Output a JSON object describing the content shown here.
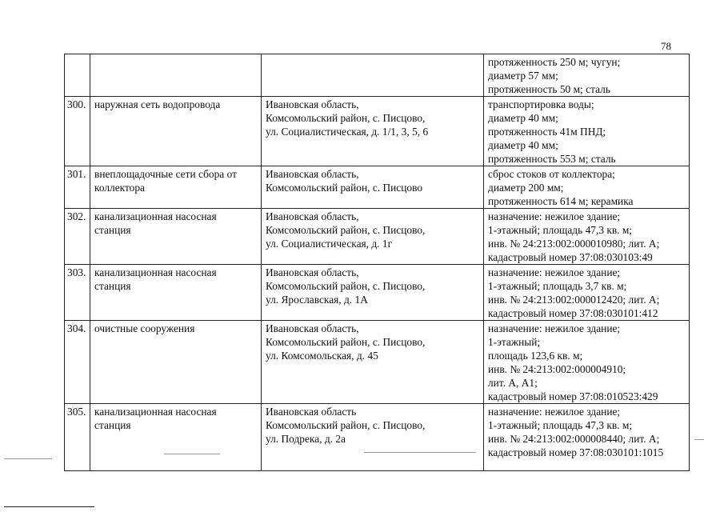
{
  "page_number": "78",
  "rows": [
    {
      "num": "",
      "name": [],
      "address": [],
      "details": [
        "протяженность 250 м; чугун;",
        "диаметр 57 мм;",
        "протяженность 50 м; сталь"
      ]
    },
    {
      "num": "300.",
      "name": [
        "наружная сеть водопровода"
      ],
      "address": [
        "Ивановская область,",
        "Комсомольский район, с. Писцово,",
        "ул. Социалистическая, д. 1/1, 3, 5, 6"
      ],
      "details": [
        "транспортировка воды;",
        "диаметр 40 мм;",
        "протяженность  41м ПНД;",
        "диаметр 40 мм;",
        "протяженность 553 м; сталь"
      ]
    },
    {
      "num": "301.",
      "name": [
        "внеплощадочные сети сбора от",
        "коллектора"
      ],
      "address": [
        "Ивановская область,",
        "Комсомольский район, с. Писцово"
      ],
      "details": [
        "сброс стоков от коллектора;",
        "диаметр 200 мм;",
        "протяженность 614 м; керамика"
      ]
    },
    {
      "num": "302.",
      "name": [
        "канализационная насосная",
        "станция"
      ],
      "address": [
        "Ивановская область,",
        "Комсомольский район, с. Писцово,",
        "ул. Социалистическая, д. 1г"
      ],
      "details": [
        "назначение: нежилое здание;",
        "1-этажный; площадь 47,3 кв. м;",
        "инв. № 24:213:002:000010980; лит. А;",
        "кадастровый номер 37:08:030103:49"
      ]
    },
    {
      "num": "303.",
      "name": [
        "канализационная насосная",
        "станция"
      ],
      "address": [
        "Ивановская область,",
        "Комсомольский район, с. Писцово,",
        "ул. Ярославская, д. 1А"
      ],
      "details": [
        "назначение: нежилое здание;",
        "1-этажный; площадь 3,7 кв. м;",
        "инв. № 24:213:002:000012420; лит. А;",
        "кадастровый номер 37:08:030101:412"
      ]
    },
    {
      "num": "304.",
      "name": [
        "очистные сооружения"
      ],
      "address": [
        "Ивановская область,",
        "Комсомольский район, с. Писцово,",
        "ул. Комсомольская, д. 45"
      ],
      "details": [
        "назначение: нежилое здание;",
        "1-этажный;",
        "площадь 123,6 кв. м;",
        "инв. № 24:213:002:000004910;",
        "лит. А, А1;",
        "кадастровый номер 37:08:010523:429"
      ]
    },
    {
      "num": "305.",
      "name": [
        "канализационная насосная",
        "станция"
      ],
      "address": [
        "Ивановская область",
        "Комсомольский район, с. Писцово,",
        "ул. Подрека, д. 2а"
      ],
      "details": [
        "назначение: нежилое здание;",
        "1-этажный; площадь 47,3 кв. м;",
        "инв. № 24:213:002:000008440; лит. А;",
        "кадастровый номер 37:08:030101:1015"
      ]
    }
  ]
}
